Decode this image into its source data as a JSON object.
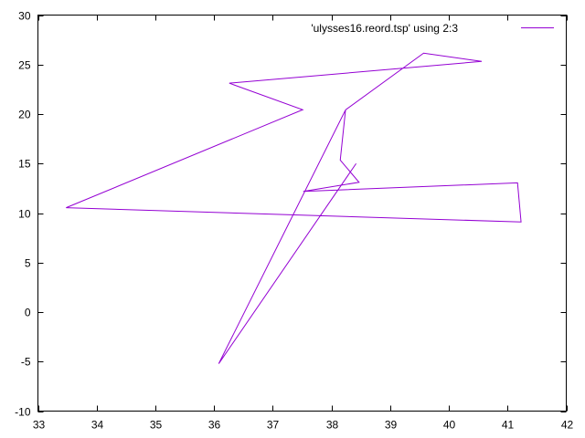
{
  "chart_data": {
    "type": "line",
    "title": "",
    "xlabel": "",
    "ylabel": "",
    "xlim": [
      33,
      42
    ],
    "ylim": [
      -10,
      30
    ],
    "xticks": [
      33,
      34,
      35,
      36,
      37,
      38,
      39,
      40,
      41,
      42
    ],
    "yticks": [
      -10,
      -5,
      0,
      5,
      10,
      15,
      20,
      25,
      30
    ],
    "grid": false,
    "legend_position": "top-right",
    "series": [
      {
        "name": "'ulysses16.reord.tsp' using 2:3",
        "color": "#9400d3",
        "x": [
          38.24,
          39.57,
          40.56,
          36.26,
          37.51,
          33.48,
          41.23,
          41.17,
          37.52,
          38.47,
          38.15,
          38.24,
          36.08,
          38.42
        ],
        "y": [
          20.42,
          26.15,
          25.32,
          23.12,
          20.44,
          10.54,
          9.1,
          13.05,
          12.19,
          13.11,
          15.35,
          20.42,
          -5.21,
          15.0
        ]
      }
    ]
  }
}
